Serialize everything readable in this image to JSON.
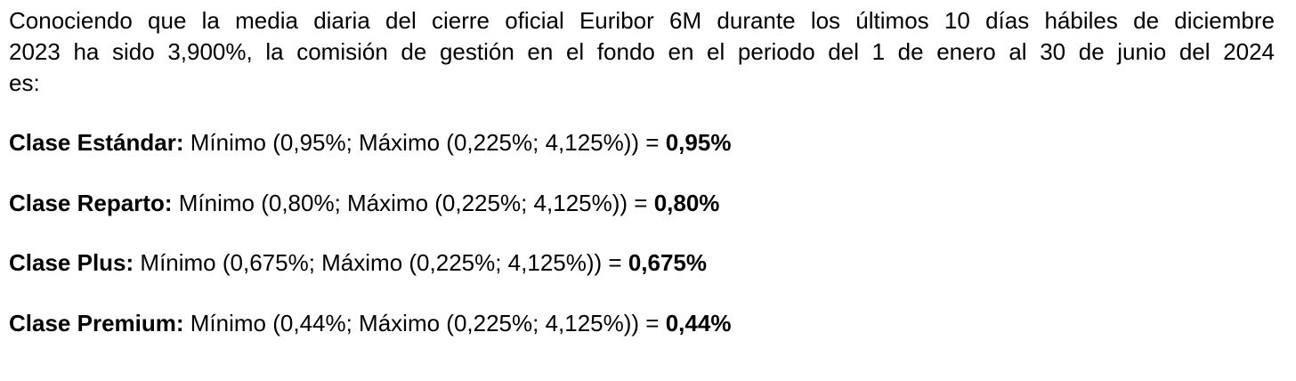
{
  "intro": {
    "lines": [
      "Conociendo que la media diaria del cierre oficial Euribor 6M durante los últimos 10 días hábiles de diciembre",
      "2023 ha sido 3,900%, la comisión de gestión en el fondo en el periodo del 1 de enero al 30 de junio del 2024",
      "es:"
    ]
  },
  "clases": [
    {
      "label": "Clase Estándar:",
      "formula": "Mínimo (0,95%; Máximo (0,225%; 4,125%)) =",
      "result": "0,95%"
    },
    {
      "label": "Clase Reparto:",
      "formula": "Mínimo (0,80%; Máximo (0,225%; 4,125%)) =",
      "result": "0,80%"
    },
    {
      "label": "Clase Plus:",
      "formula": "Mínimo (0,675%; Máximo (0,225%; 4,125%)) =",
      "result": "0,675%"
    },
    {
      "label": "Clase Premium:",
      "formula": "Mínimo (0,44%; Máximo (0,225%; 4,125%)) =",
      "result": "0,44%"
    }
  ]
}
